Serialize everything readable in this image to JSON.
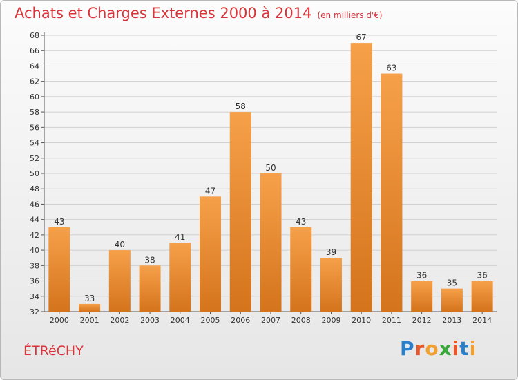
{
  "header": {
    "title": "Achats et Charges Externes 2000 à 2014",
    "subtitle": "(en milliers d'€)"
  },
  "footer": {
    "commune": "ÉTRéCHY",
    "brand": [
      "P",
      "r",
      "o",
      "x",
      "i",
      "t",
      "i"
    ],
    "brand_colors": [
      "#2a7fc8",
      "#e8572a",
      "#f0a030",
      "#38a838",
      "#e8572a",
      "#2a7fc8",
      "#f0a030"
    ]
  },
  "chart_data": {
    "type": "bar",
    "title": "Achats et Charges Externes 2000 à 2014",
    "subtitle": "(en milliers d'€)",
    "xlabel": "",
    "ylabel": "",
    "categories": [
      "2000",
      "2001",
      "2002",
      "2003",
      "2004",
      "2005",
      "2006",
      "2007",
      "2008",
      "2009",
      "2010",
      "2011",
      "2012",
      "2013",
      "2014"
    ],
    "values": [
      43,
      33,
      40,
      38,
      41,
      47,
      58,
      50,
      43,
      39,
      67,
      63,
      36,
      35,
      36
    ],
    "ylim": [
      32,
      68
    ],
    "yticks": [
      32,
      34,
      36,
      38,
      40,
      42,
      44,
      46,
      48,
      50,
      52,
      54,
      56,
      58,
      60,
      62,
      64,
      66,
      68
    ],
    "grid": true,
    "legend": "none",
    "colors": {
      "bar": "#f0922c",
      "bar_dark": "#d4741c"
    }
  }
}
